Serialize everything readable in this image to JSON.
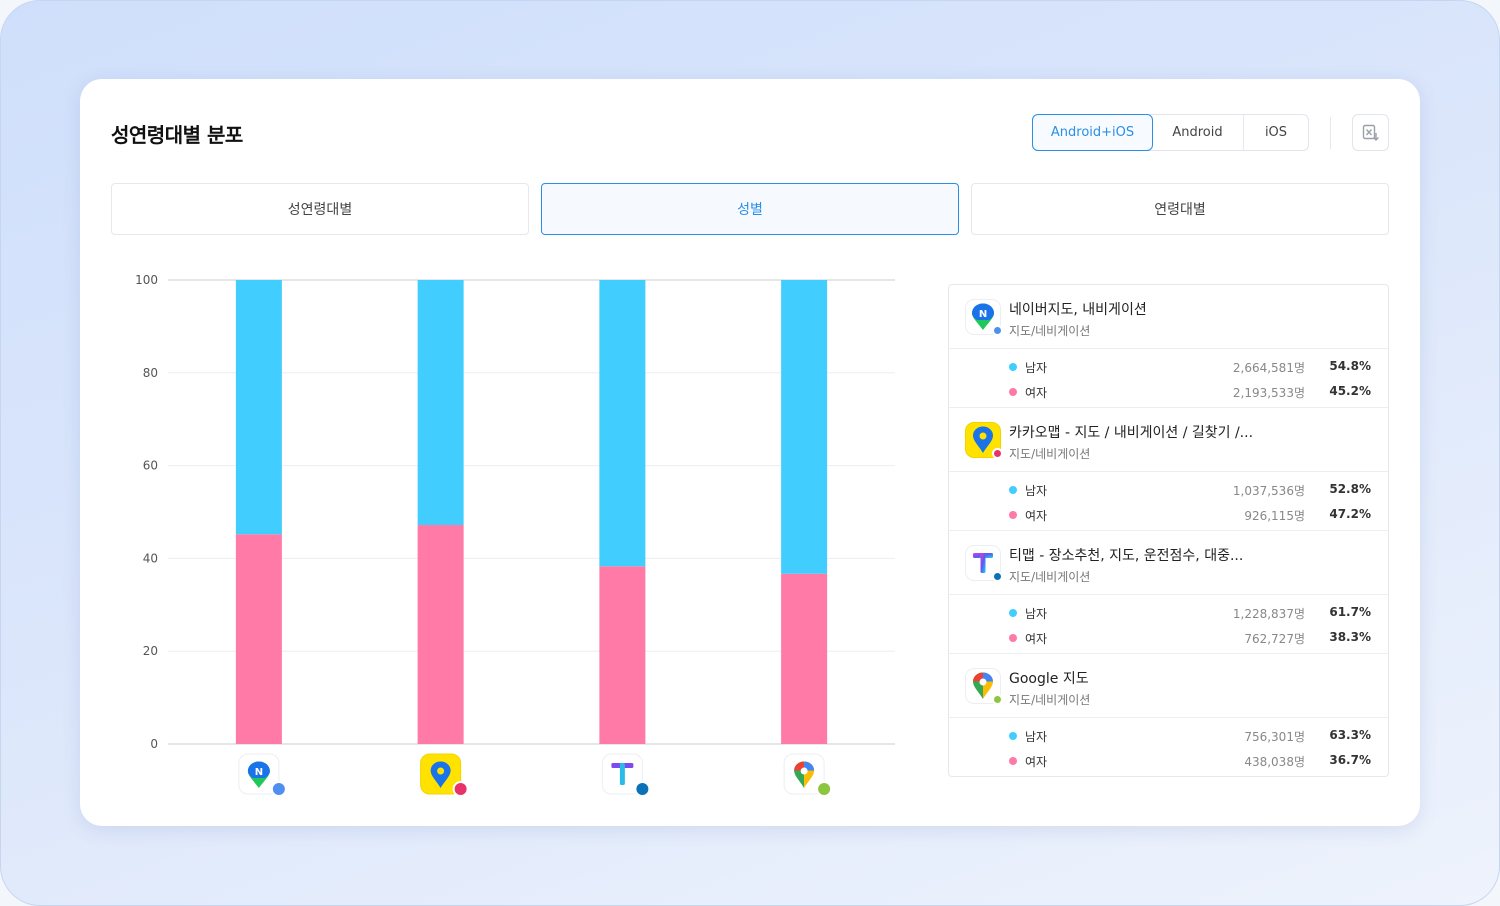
{
  "title": "성연령대별 분포",
  "os_options": [
    "Android+iOS",
    "Android",
    "iOS"
  ],
  "os_selected": "Android+iOS",
  "tabs": [
    "성연령대별",
    "성별",
    "연령대별"
  ],
  "tab_selected": "성별",
  "colors": {
    "male": "#41cdfe",
    "female": "#ff7aa6",
    "accent": "#2a8fe6"
  },
  "chart_data": {
    "type": "bar",
    "stacked": true,
    "categories": [
      "네이버지도, 내비게이션",
      "카카오맵",
      "티맵",
      "Google 지도"
    ],
    "series": [
      {
        "name": "여자",
        "values": [
          45.2,
          47.2,
          38.3,
          36.7
        ]
      },
      {
        "name": "남자",
        "values": [
          54.8,
          52.8,
          61.7,
          63.3
        ]
      }
    ],
    "ylim": [
      0,
      100
    ],
    "yticks": [
      0,
      20,
      40,
      60,
      80,
      100
    ],
    "grid": true
  },
  "apps": [
    {
      "name": "네이버지도, 내비게이션",
      "category": "지도/네비게이션",
      "icon": "naver-map-icon",
      "dot_color": "#4f8ff0",
      "rows": [
        {
          "label": "남자",
          "count": "2,664,581명",
          "pct": "54.8%"
        },
        {
          "label": "여자",
          "count": "2,193,533명",
          "pct": "45.2%"
        }
      ]
    },
    {
      "name": "카카오맵 - 지도 / 내비게이션 / 길찾기 /...",
      "category": "지도/네비게이션",
      "icon": "kakao-map-icon",
      "dot_color": "#e8336a",
      "rows": [
        {
          "label": "남자",
          "count": "1,037,536명",
          "pct": "52.8%"
        },
        {
          "label": "여자",
          "count": "926,115명",
          "pct": "47.2%"
        }
      ]
    },
    {
      "name": "티맵 - 장소추천, 지도, 운전점수, 대중...",
      "category": "지도/네비게이션",
      "icon": "tmap-icon",
      "dot_color": "#0a72b8",
      "rows": [
        {
          "label": "남자",
          "count": "1,228,837명",
          "pct": "61.7%"
        },
        {
          "label": "여자",
          "count": "762,727명",
          "pct": "38.3%"
        }
      ]
    },
    {
      "name": "Google 지도",
      "category": "지도/네비게이션",
      "icon": "google-maps-icon",
      "dot_color": "#8cc63f",
      "rows": [
        {
          "label": "남자",
          "count": "756,301명",
          "pct": "63.3%"
        },
        {
          "label": "여자",
          "count": "438,038명",
          "pct": "36.7%"
        }
      ]
    }
  ]
}
